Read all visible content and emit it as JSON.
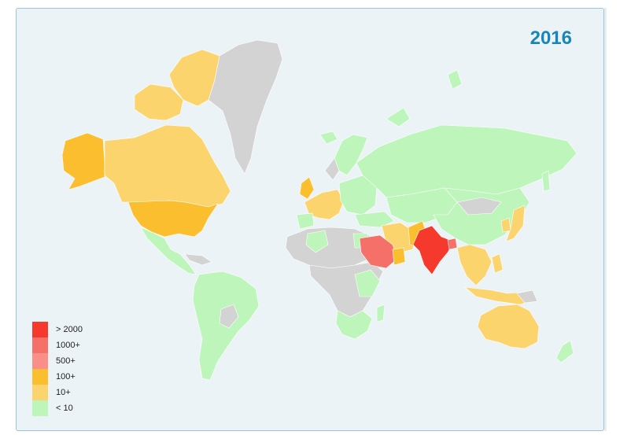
{
  "map": {
    "year": "2016",
    "colors": {
      "ocean": "#ecf3f6",
      "no_data": "#d3d3d3",
      "border": "#ffffff"
    },
    "legend": [
      {
        "label": "> 2000",
        "color": "#f5392c"
      },
      {
        "label": "1000+",
        "color": "#f6706a"
      },
      {
        "label": "500+",
        "color": "#fa8f8a"
      },
      {
        "label": "100+",
        "color": "#fbbe2f"
      },
      {
        "label": "10+",
        "color": "#fcd46e"
      },
      {
        "label": "< 10",
        "color": "#bdf5bb"
      }
    ]
  }
}
